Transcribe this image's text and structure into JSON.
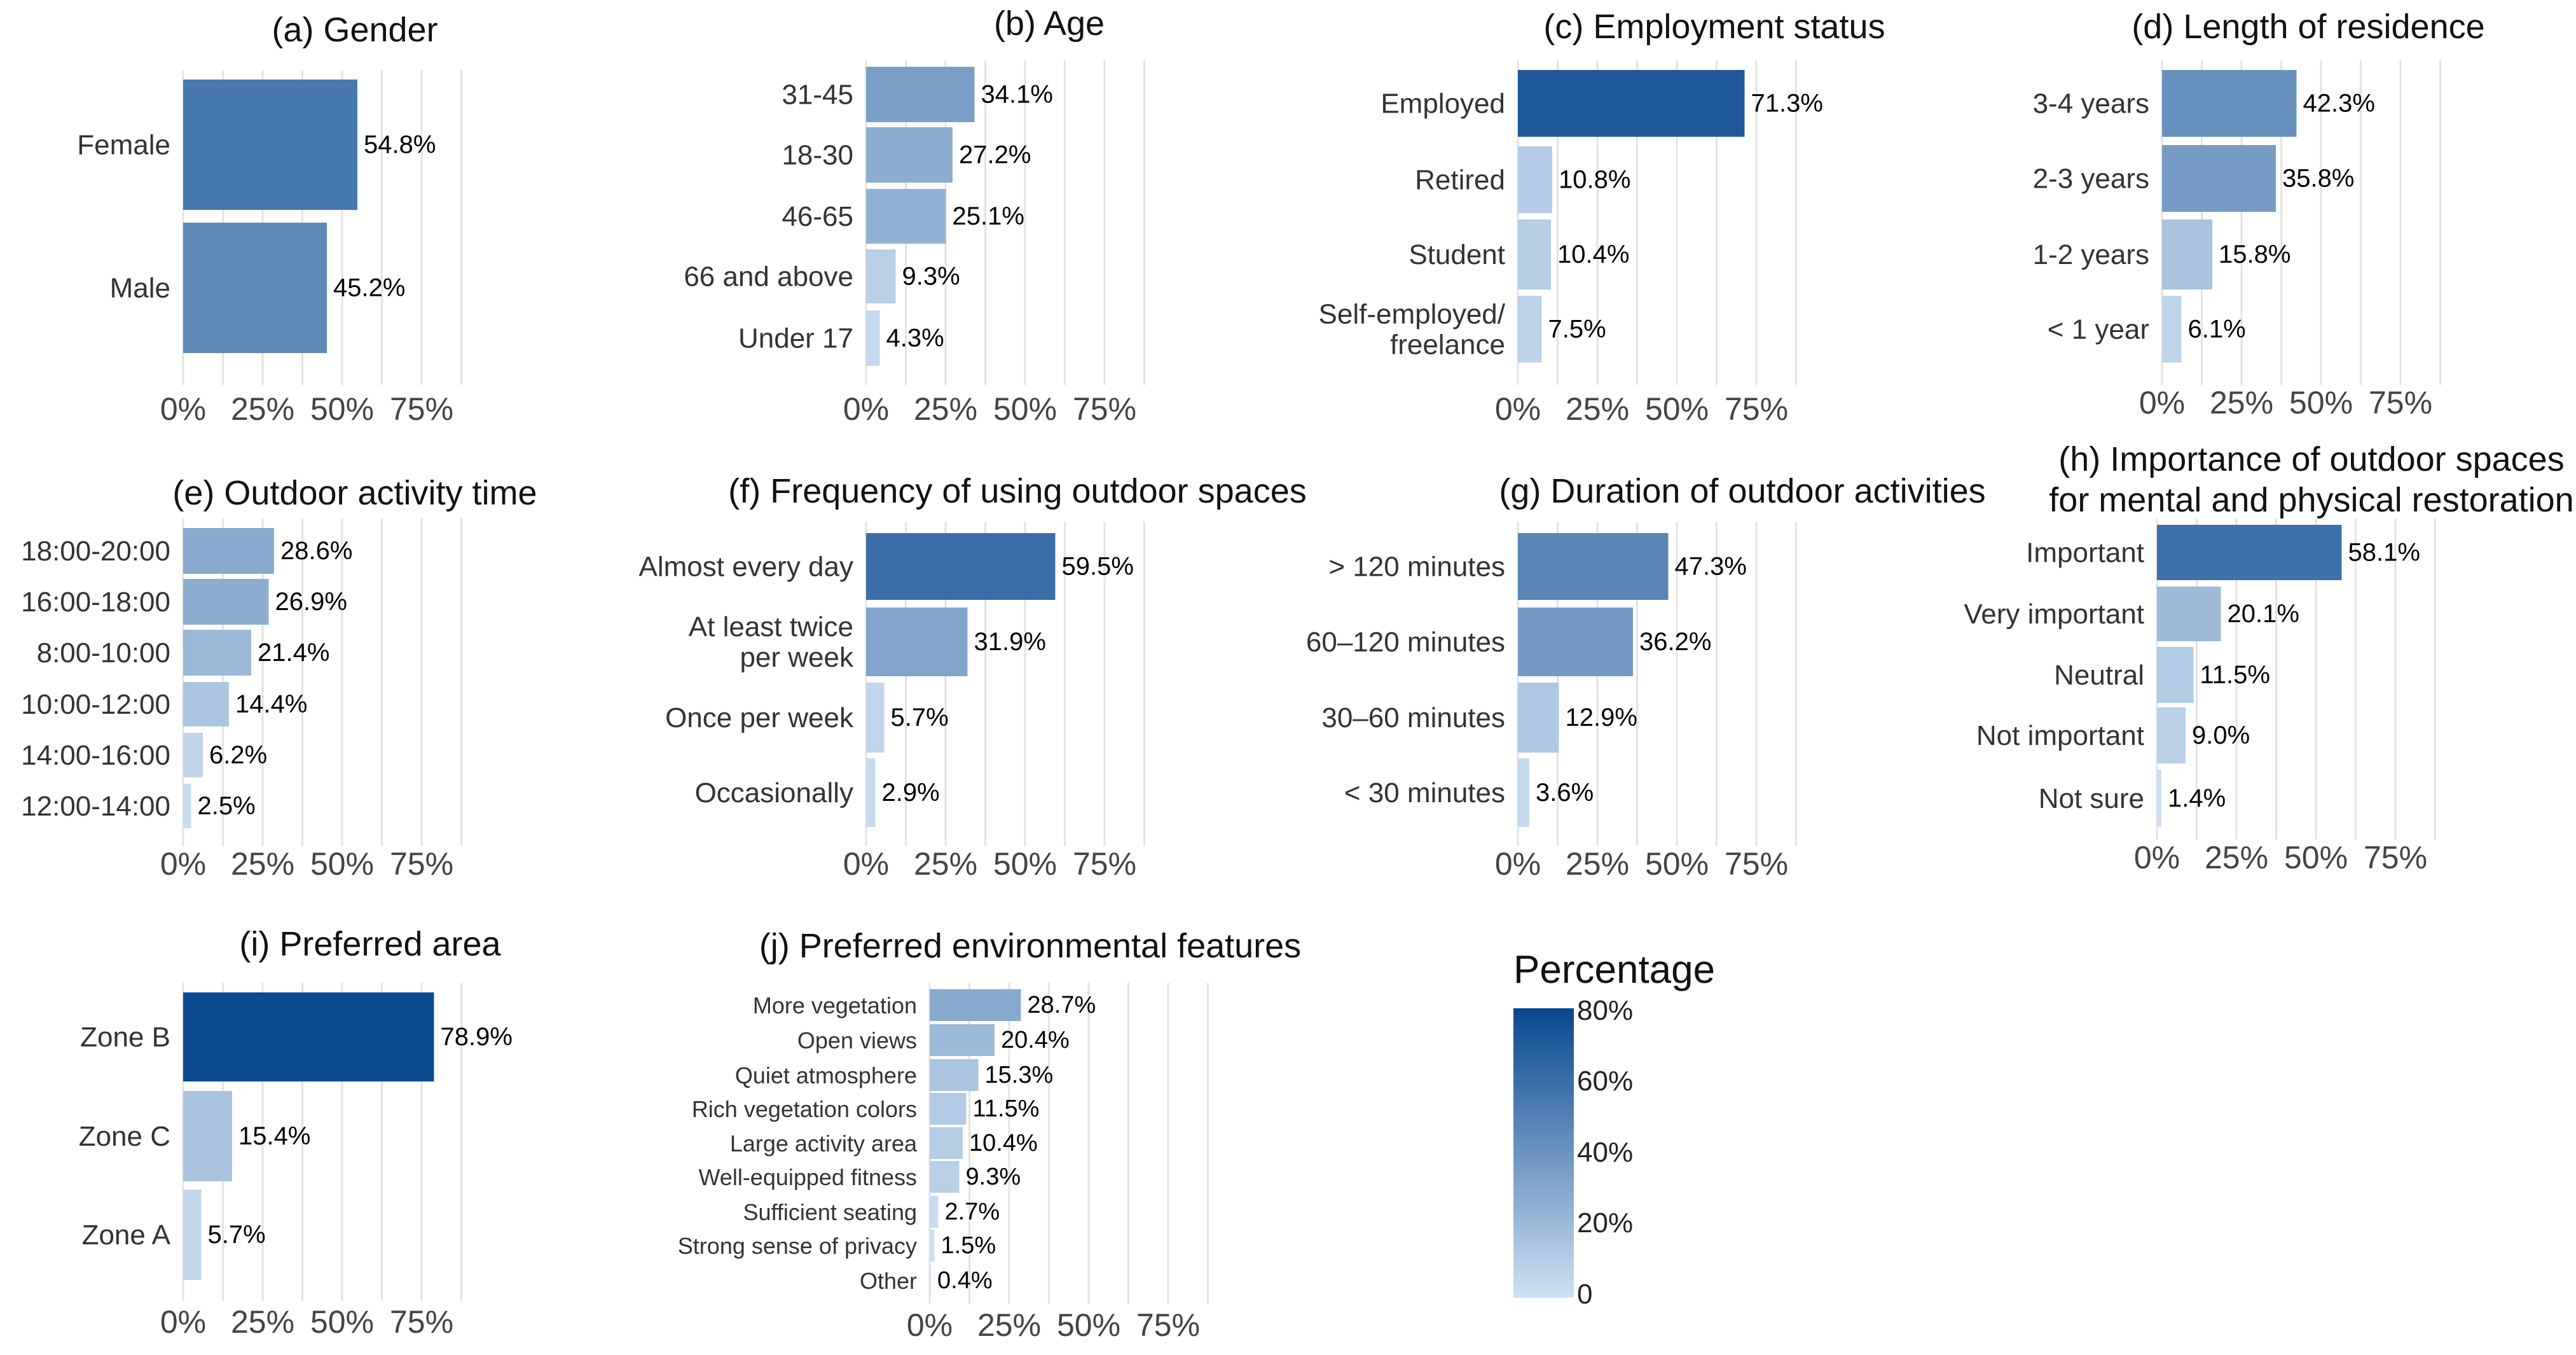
{
  "chart_data": [
    {
      "id": "a",
      "type": "bar",
      "orientation": "horizontal",
      "title": "(a) Gender",
      "categories": [
        "Female",
        "Male"
      ],
      "values": [
        54.8,
        45.2
      ],
      "xlim": [
        0,
        80
      ],
      "xticks": [
        "0%",
        "25%",
        "50%",
        "75%"
      ],
      "value_unit": "%"
    },
    {
      "id": "b",
      "type": "bar",
      "orientation": "horizontal",
      "title": "(b) Age",
      "categories": [
        "31-45",
        "18-30",
        "46-65",
        "66 and above",
        "Under 17"
      ],
      "values": [
        34.1,
        27.2,
        25.1,
        9.3,
        4.3
      ],
      "xlim": [
        0,
        80
      ],
      "xticks": [
        "0%",
        "25%",
        "50%",
        "75%"
      ],
      "value_unit": "%"
    },
    {
      "id": "c",
      "type": "bar",
      "orientation": "horizontal",
      "title": "(c) Employment status",
      "categories": [
        "Employed",
        "Retired",
        "Student",
        "Self-employed/\nfreelance"
      ],
      "values": [
        71.3,
        10.8,
        10.4,
        7.5
      ],
      "xlim": [
        0,
        80
      ],
      "xticks": [
        "0%",
        "25%",
        "50%",
        "75%"
      ],
      "value_unit": "%"
    },
    {
      "id": "d",
      "type": "bar",
      "orientation": "horizontal",
      "title": "(d) Length of residence",
      "categories": [
        "3-4 years",
        "2-3 years",
        "1-2 years",
        "< 1 year"
      ],
      "values": [
        42.3,
        35.8,
        15.8,
        6.1
      ],
      "xlim": [
        0,
        80
      ],
      "xticks": [
        "0%",
        "25%",
        "50%",
        "75%"
      ],
      "value_unit": "%"
    },
    {
      "id": "e",
      "type": "bar",
      "orientation": "horizontal",
      "title": "(e) Outdoor activity time",
      "categories": [
        "18:00-20:00",
        "16:00-18:00",
        "8:00-10:00",
        "10:00-12:00",
        "14:00-16:00",
        "12:00-14:00"
      ],
      "values": [
        28.6,
        26.9,
        21.4,
        14.4,
        6.2,
        2.5
      ],
      "xlim": [
        0,
        80
      ],
      "xticks": [
        "0%",
        "25%",
        "50%",
        "75%"
      ],
      "value_unit": "%"
    },
    {
      "id": "f",
      "type": "bar",
      "orientation": "horizontal",
      "title": "(f) Frequency of using outdoor spaces",
      "categories": [
        "Almost every day",
        "At least twice\nper week",
        "Once per week",
        "Occasionally"
      ],
      "values": [
        59.5,
        31.9,
        5.7,
        2.9
      ],
      "xlim": [
        0,
        80
      ],
      "xticks": [
        "0%",
        "25%",
        "50%",
        "75%"
      ],
      "value_unit": "%"
    },
    {
      "id": "g",
      "type": "bar",
      "orientation": "horizontal",
      "title": "(g) Duration of outdoor activities",
      "categories": [
        "> 120 minutes",
        "60–120 minutes",
        "30–60 minutes",
        "< 30 minutes"
      ],
      "values": [
        47.3,
        36.2,
        12.9,
        3.6
      ],
      "xlim": [
        0,
        80
      ],
      "xticks": [
        "0%",
        "25%",
        "50%",
        "75%"
      ],
      "value_unit": "%"
    },
    {
      "id": "h",
      "type": "bar",
      "orientation": "horizontal",
      "title": "(h) Importance of outdoor spaces\nfor mental and physical restoration",
      "categories": [
        "Important",
        "Very important",
        "Neutral",
        "Not important",
        "Not sure"
      ],
      "values": [
        58.1,
        20.1,
        11.5,
        9.0,
        1.4
      ],
      "xlim": [
        0,
        80
      ],
      "xticks": [
        "0%",
        "25%",
        "50%",
        "75%"
      ],
      "value_unit": "%"
    },
    {
      "id": "i",
      "type": "bar",
      "orientation": "horizontal",
      "title": "(i) Preferred area",
      "categories": [
        "Zone B",
        "Zone C",
        "Zone A"
      ],
      "values": [
        78.9,
        15.4,
        5.7
      ],
      "xlim": [
        0,
        80
      ],
      "xticks": [
        "0%",
        "25%",
        "50%",
        "75%"
      ],
      "value_unit": "%"
    },
    {
      "id": "j",
      "type": "bar",
      "orientation": "horizontal",
      "title": "(j) Preferred environmental features",
      "categories": [
        "More vegetation",
        "Open views",
        "Quiet atmosphere",
        "Rich vegetation colors",
        "Large activity area",
        "Well-equipped fitness",
        "Sufficient seating",
        "Strong sense of privacy",
        "Other"
      ],
      "values": [
        28.7,
        20.4,
        15.3,
        11.5,
        10.4,
        9.3,
        2.7,
        1.5,
        0.4
      ],
      "xlim": [
        0,
        80
      ],
      "xticks": [
        "0%",
        "25%",
        "50%",
        "75%"
      ],
      "value_unit": "%"
    }
  ],
  "legend": {
    "title": "Percentage",
    "ticks": [
      "80%",
      "60%",
      "40%",
      "20%",
      "0"
    ],
    "range": [
      0,
      80
    ],
    "color_low": "#cfe1f2",
    "color_high": "#08478e"
  }
}
